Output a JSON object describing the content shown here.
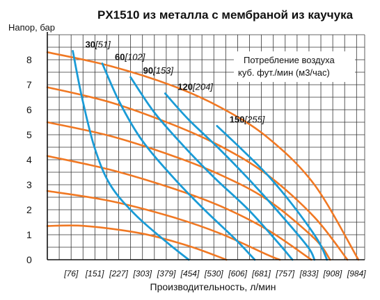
{
  "chart_data": {
    "type": "line",
    "title": "PX1510 из металла с мембраной из каучука",
    "ylabel": "Напор, бар",
    "xlabel": "Производительность, л/мин",
    "ylim": [
      0,
      9
    ],
    "xlim": [
      0,
      1010
    ],
    "y_ticks": [
      "0",
      "1",
      "2",
      "3",
      "4",
      "5",
      "6",
      "7",
      "8"
    ],
    "x_ticks": [
      {
        "value": 76,
        "label": "[76]"
      },
      {
        "value": 151,
        "label": "[151]"
      },
      {
        "value": 227,
        "label": "[227]"
      },
      {
        "value": 303,
        "label": "[303]"
      },
      {
        "value": 379,
        "label": "[379]"
      },
      {
        "value": 454,
        "label": "[454]"
      },
      {
        "value": 530,
        "label": "[530]"
      },
      {
        "value": 606,
        "label": "[606]"
      },
      {
        "value": 681,
        "label": "[681]"
      },
      {
        "value": 757,
        "label": "[757]"
      },
      {
        "value": 833,
        "label": "[833]"
      },
      {
        "value": 908,
        "label": "[908]"
      },
      {
        "value": 984,
        "label": "[984]"
      }
    ],
    "grid": true,
    "legend_text": {
      "line1": "Потребление воздуха",
      "line2": "куб. фут./мин (м3/час)"
    },
    "pressure_curves": {
      "color": "#f07823",
      "series": [
        {
          "points": [
            [
              0,
              8.3
            ],
            [
              200,
              7.75
            ],
            [
              400,
              6.95
            ],
            [
              550,
              6.1
            ],
            [
              700,
              4.9
            ],
            [
              850,
              3.0
            ],
            [
              990,
              0
            ]
          ]
        },
        {
          "points": [
            [
              0,
              6.9
            ],
            [
              200,
              6.3
            ],
            [
              400,
              5.4
            ],
            [
              550,
              4.55
            ],
            [
              700,
              3.4
            ],
            [
              850,
              1.7
            ],
            [
              955,
              0
            ]
          ]
        },
        {
          "points": [
            [
              0,
              5.5
            ],
            [
              200,
              4.95
            ],
            [
              400,
              4.15
            ],
            [
              550,
              3.4
            ],
            [
              700,
              2.4
            ],
            [
              850,
              0.85
            ],
            [
              900,
              0
            ]
          ]
        },
        {
          "points": [
            [
              0,
              4.15
            ],
            [
              200,
              3.6
            ],
            [
              400,
              2.85
            ],
            [
              550,
              2.15
            ],
            [
              700,
              1.2
            ],
            [
              840,
              0
            ]
          ]
        },
        {
          "points": [
            [
              0,
              2.75
            ],
            [
              200,
              2.35
            ],
            [
              400,
              1.7
            ],
            [
              550,
              1.05
            ],
            [
              700,
              0.2
            ],
            [
              740,
              0
            ]
          ]
        },
        {
          "points": [
            [
              0,
              1.35
            ],
            [
              120,
              1.35
            ],
            [
              300,
              1.05
            ],
            [
              450,
              0.55
            ],
            [
              570,
              0
            ]
          ]
        }
      ]
    },
    "air_curves": {
      "color": "#1a9bd6",
      "series": [
        {
          "label_bold": "30",
          "label_italic": "[51]",
          "points": [
            [
              81,
              8.35
            ],
            [
              110,
              6.5
            ],
            [
              150,
              4.5
            ],
            [
              200,
              3.0
            ],
            [
              280,
              1.8
            ],
            [
              380,
              0.7
            ],
            [
              450,
              0
            ]
          ]
        },
        {
          "label_bold": "60",
          "label_italic": "[102]",
          "points": [
            [
              175,
              7.85
            ],
            [
              230,
              6.3
            ],
            [
              300,
              4.8
            ],
            [
              400,
              3.3
            ],
            [
              500,
              2.0
            ],
            [
              600,
              0.8
            ],
            [
              660,
              0
            ]
          ]
        },
        {
          "label_bold": "90",
          "label_italic": "[153]",
          "points": [
            [
              265,
              7.3
            ],
            [
              340,
              5.9
            ],
            [
              430,
              4.6
            ],
            [
              530,
              3.3
            ],
            [
              640,
              2.0
            ],
            [
              740,
              0.6
            ],
            [
              780,
              0
            ]
          ]
        },
        {
          "label_bold": "120",
          "label_italic": "[204]",
          "points": [
            [
              375,
              6.65
            ],
            [
              450,
              5.6
            ],
            [
              550,
              4.4
            ],
            [
              650,
              3.1
            ],
            [
              750,
              1.7
            ],
            [
              830,
              0.5
            ],
            [
              850,
              0
            ]
          ]
        },
        {
          "label_bold": "150",
          "label_italic": "[255]",
          "points": [
            [
              540,
              5.35
            ],
            [
              620,
              4.4
            ],
            [
              700,
              3.4
            ],
            [
              780,
              2.2
            ],
            [
              860,
              0.8
            ],
            [
              890,
              0
            ]
          ]
        }
      ]
    }
  }
}
